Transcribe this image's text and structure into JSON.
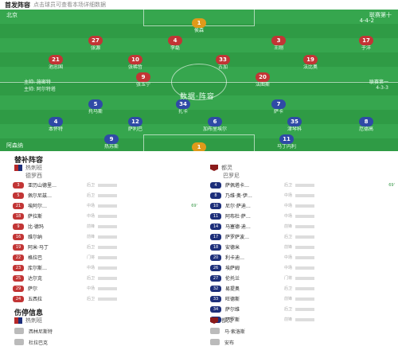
{
  "header": {
    "title": "首发阵容",
    "subtitle": "点击球员可查看本场详细数据"
  },
  "pitch": {
    "home_team": "北京",
    "away_team": "阿森纳",
    "home_formation": "4-4-2",
    "away_formation": "4-3-3",
    "center_text": "数据·阵容",
    "home_info": "主帅: 施密特",
    "away_info": "主帅: 阿尔特塔",
    "home_tag": "联赛第十",
    "away_tag": "联赛第一"
  },
  "lineup_home": [
    {
      "num": "1",
      "name": "侯森",
      "role": "gk"
    },
    {
      "num": "27",
      "name": "张源",
      "role": "p"
    },
    {
      "num": "4",
      "name": "李磊",
      "role": "p"
    },
    {
      "num": "3",
      "name": "王刚",
      "role": "p"
    },
    {
      "num": "17",
      "name": "于洋",
      "role": "p"
    },
    {
      "num": "21",
      "name": "池忠国",
      "role": "p"
    },
    {
      "num": "10",
      "name": "张稀哲",
      "role": "p"
    },
    {
      "num": "33",
      "name": "古加",
      "role": "p"
    },
    {
      "num": "19",
      "name": "法比奥",
      "role": "p"
    },
    {
      "num": "9",
      "name": "张玉宁",
      "role": "p"
    },
    {
      "num": "20",
      "name": "法图斯",
      "role": "p"
    }
  ],
  "lineup_away": [
    {
      "num": "1",
      "name": "拉姆斯代尔",
      "role": "gk"
    },
    {
      "num": "4",
      "name": "本怀特",
      "role": "p"
    },
    {
      "num": "12",
      "name": "萨利巴",
      "role": "p"
    },
    {
      "num": "6",
      "name": "加布里埃尔",
      "role": "p"
    },
    {
      "num": "35",
      "name": "津琴科",
      "role": "p"
    },
    {
      "num": "8",
      "name": "厄德高",
      "role": "p"
    },
    {
      "num": "5",
      "name": "托马斯",
      "role": "p"
    },
    {
      "num": "34",
      "name": "扎卡",
      "role": "p"
    },
    {
      "num": "7",
      "name": "萨卡",
      "role": "p"
    },
    {
      "num": "9",
      "name": "热苏斯",
      "role": "p"
    },
    {
      "num": "11",
      "name": "马丁内利",
      "role": "p"
    }
  ],
  "subs": {
    "title": "替补阵容",
    "home_team": "热刺班",
    "away_team": "都灵",
    "home_subtitle": "德罗西",
    "away_subtitle": "巴罗尼",
    "home": [
      {
        "num": "3",
        "name": "亚历山德里…",
        "pos": "后卫"
      },
      {
        "num": "5",
        "name": "佩尔尼兹…",
        "pos": "后卫"
      },
      {
        "num": "21",
        "name": "埃阿尔…",
        "pos": "中场"
      },
      {
        "num": "18",
        "name": "萨拉斯",
        "pos": "中场"
      },
      {
        "num": "9",
        "name": "比·德玛",
        "pos": "前锋"
      },
      {
        "num": "16",
        "name": "维尔纳",
        "pos": "前锋"
      },
      {
        "num": "19",
        "name": "阿米·马丁",
        "pos": "后卫"
      },
      {
        "num": "22",
        "name": "格拉巴",
        "pos": "门将"
      },
      {
        "num": "23",
        "name": "库尔斯…",
        "pos": "中场"
      },
      {
        "num": "25",
        "name": "达尔克",
        "pos": "后卫"
      },
      {
        "num": "29",
        "name": "萨尔",
        "pos": "中场"
      },
      {
        "num": "24",
        "name": "五西拉",
        "pos": "后卫"
      }
    ],
    "away": [
      {
        "num": "4",
        "name": "萨佩塔卡…",
        "pos": "后卫"
      },
      {
        "num": "8",
        "name": "乃维·奥·伊…",
        "pos": "中场"
      },
      {
        "num": "10",
        "name": "尼尔·萨迪…",
        "pos": "中场"
      },
      {
        "num": "11",
        "name": "阿布杜·萨…",
        "pos": "中场"
      },
      {
        "num": "14",
        "name": "马塞德·迪…",
        "pos": "前锋"
      },
      {
        "num": "17",
        "name": "萨罗萨波…",
        "pos": "后卫"
      },
      {
        "num": "18",
        "name": "安德米",
        "pos": "前锋"
      },
      {
        "num": "20",
        "name": "利卡迪…",
        "pos": "中场"
      },
      {
        "num": "26",
        "name": "埃萨姆",
        "pos": "中场"
      },
      {
        "num": "27",
        "name": "伦托兰",
        "pos": "门将"
      },
      {
        "num": "32",
        "name": "易提奥",
        "pos": "后卫"
      },
      {
        "num": "33",
        "name": "旺德斯",
        "pos": "前锋"
      },
      {
        "num": "34",
        "name": "萨尔维",
        "pos": "后卫"
      },
      {
        "num": "91",
        "name": "萨罗斯",
        "pos": "前锋"
      }
    ],
    "home_tags": [
      "",
      "",
      " 69'",
      "",
      "",
      "",
      "",
      "",
      "",
      "",
      "",
      ""
    ],
    "away_tags": [
      " 69'",
      "",
      "",
      "",
      "",
      "",
      "",
      "",
      "",
      "",
      "",
      "",
      "",
      ""
    ]
  },
  "injuries": {
    "title": "伤停信息",
    "home_team": "热刺班",
    "away_team": "都灵",
    "home": [
      "西林尼斯特",
      "杜拉巴克"
    ],
    "away": [
      "马·索洛斯",
      "安布"
    ]
  }
}
